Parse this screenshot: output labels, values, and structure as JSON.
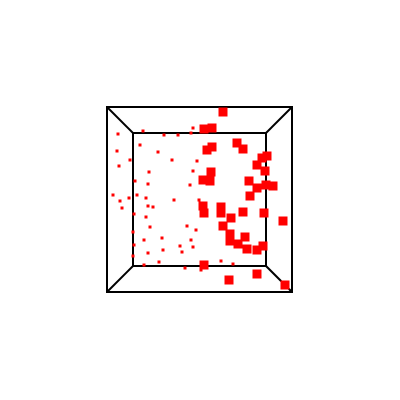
{
  "scene": {
    "line_color": "#000000",
    "point_color": "#ff0000",
    "background": "#ffffff"
  },
  "chart_data": {
    "type": "scatter",
    "title": "",
    "xlabel": "",
    "ylabel": "",
    "zlabel": "",
    "projection": "perspective-3d-box",
    "grid": false,
    "legend": "none",
    "series": [
      {
        "points": [
          [
            223,
            112,
            2
          ],
          [
            204,
            129,
            2
          ],
          [
            212,
            128,
            2
          ],
          [
            193,
            128,
            0
          ],
          [
            207,
            150,
            2
          ],
          [
            212,
            147,
            2
          ],
          [
            237,
            143,
            2
          ],
          [
            243,
            149,
            2
          ],
          [
            262,
            158,
            2
          ],
          [
            267,
            156,
            2
          ],
          [
            257,
            165,
            2
          ],
          [
            265,
            171,
            2
          ],
          [
            203,
            180,
            2
          ],
          [
            210,
            181,
            2
          ],
          [
            211,
            172,
            2
          ],
          [
            249,
            181,
            2
          ],
          [
            257,
            188,
            2
          ],
          [
            266,
            185,
            2
          ],
          [
            273,
            186,
            2
          ],
          [
            250,
            196,
            2
          ],
          [
            243,
            212,
            2
          ],
          [
            264,
            213,
            2
          ],
          [
            283,
            221,
            2
          ],
          [
            203,
            206,
            2
          ],
          [
            204,
            213,
            2
          ],
          [
            221,
            207,
            2
          ],
          [
            221,
            213,
            2
          ],
          [
            231,
            218,
            2
          ],
          [
            223,
            226,
            2
          ],
          [
            230,
            234,
            2
          ],
          [
            230,
            241,
            2
          ],
          [
            238,
            244,
            2
          ],
          [
            245,
            237,
            2
          ],
          [
            257,
            250,
            2
          ],
          [
            263,
            246,
            2
          ],
          [
            247,
            249,
            2
          ],
          [
            204,
            265,
            2
          ],
          [
            229,
            280,
            2
          ],
          [
            257,
            274,
            2
          ],
          [
            285,
            285,
            2
          ],
          [
            221,
            261,
            0
          ],
          [
            233,
            264,
            0
          ],
          [
            118,
            134,
            0
          ],
          [
            143,
            131,
            0
          ],
          [
            164,
            135,
            0
          ],
          [
            178,
            135,
            0
          ],
          [
            191,
            133,
            0
          ],
          [
            117,
            151,
            0
          ],
          [
            140,
            145,
            0
          ],
          [
            158,
            152,
            0
          ],
          [
            197,
            161,
            0
          ],
          [
            130,
            160,
            0
          ],
          [
            119,
            166,
            0
          ],
          [
            149,
            172,
            0
          ],
          [
            193,
            171,
            0
          ],
          [
            135,
            181,
            0
          ],
          [
            148,
            184,
            0
          ],
          [
            190,
            185,
            0
          ],
          [
            113,
            195,
            0
          ],
          [
            120,
            201,
            0
          ],
          [
            129,
            198,
            0
          ],
          [
            122,
            208,
            0
          ],
          [
            146,
            198,
            0
          ],
          [
            174,
            200,
            0
          ],
          [
            153,
            207,
            0
          ],
          [
            134,
            214,
            0
          ],
          [
            146,
            217,
            0
          ],
          [
            133,
            232,
            0
          ],
          [
            150,
            227,
            0
          ],
          [
            187,
            226,
            0
          ],
          [
            134,
            245,
            0
          ],
          [
            144,
            240,
            0
          ],
          [
            162,
            238,
            0
          ],
          [
            180,
            246,
            0
          ],
          [
            196,
            230,
            0
          ],
          [
            191,
            240,
            0
          ],
          [
            193,
            247,
            0
          ],
          [
            133,
            256,
            0
          ],
          [
            148,
            253,
            0
          ],
          [
            163,
            250,
            0
          ],
          [
            144,
            265,
            0
          ],
          [
            182,
            252,
            0
          ],
          [
            159,
            262,
            0
          ],
          [
            185,
            268,
            0
          ],
          [
            201,
            270,
            0
          ],
          [
            148,
            206,
            0
          ],
          [
            172,
            160,
            0
          ],
          [
            199,
            200,
            0
          ],
          [
            137,
            195,
            0
          ]
        ]
      }
    ]
  }
}
